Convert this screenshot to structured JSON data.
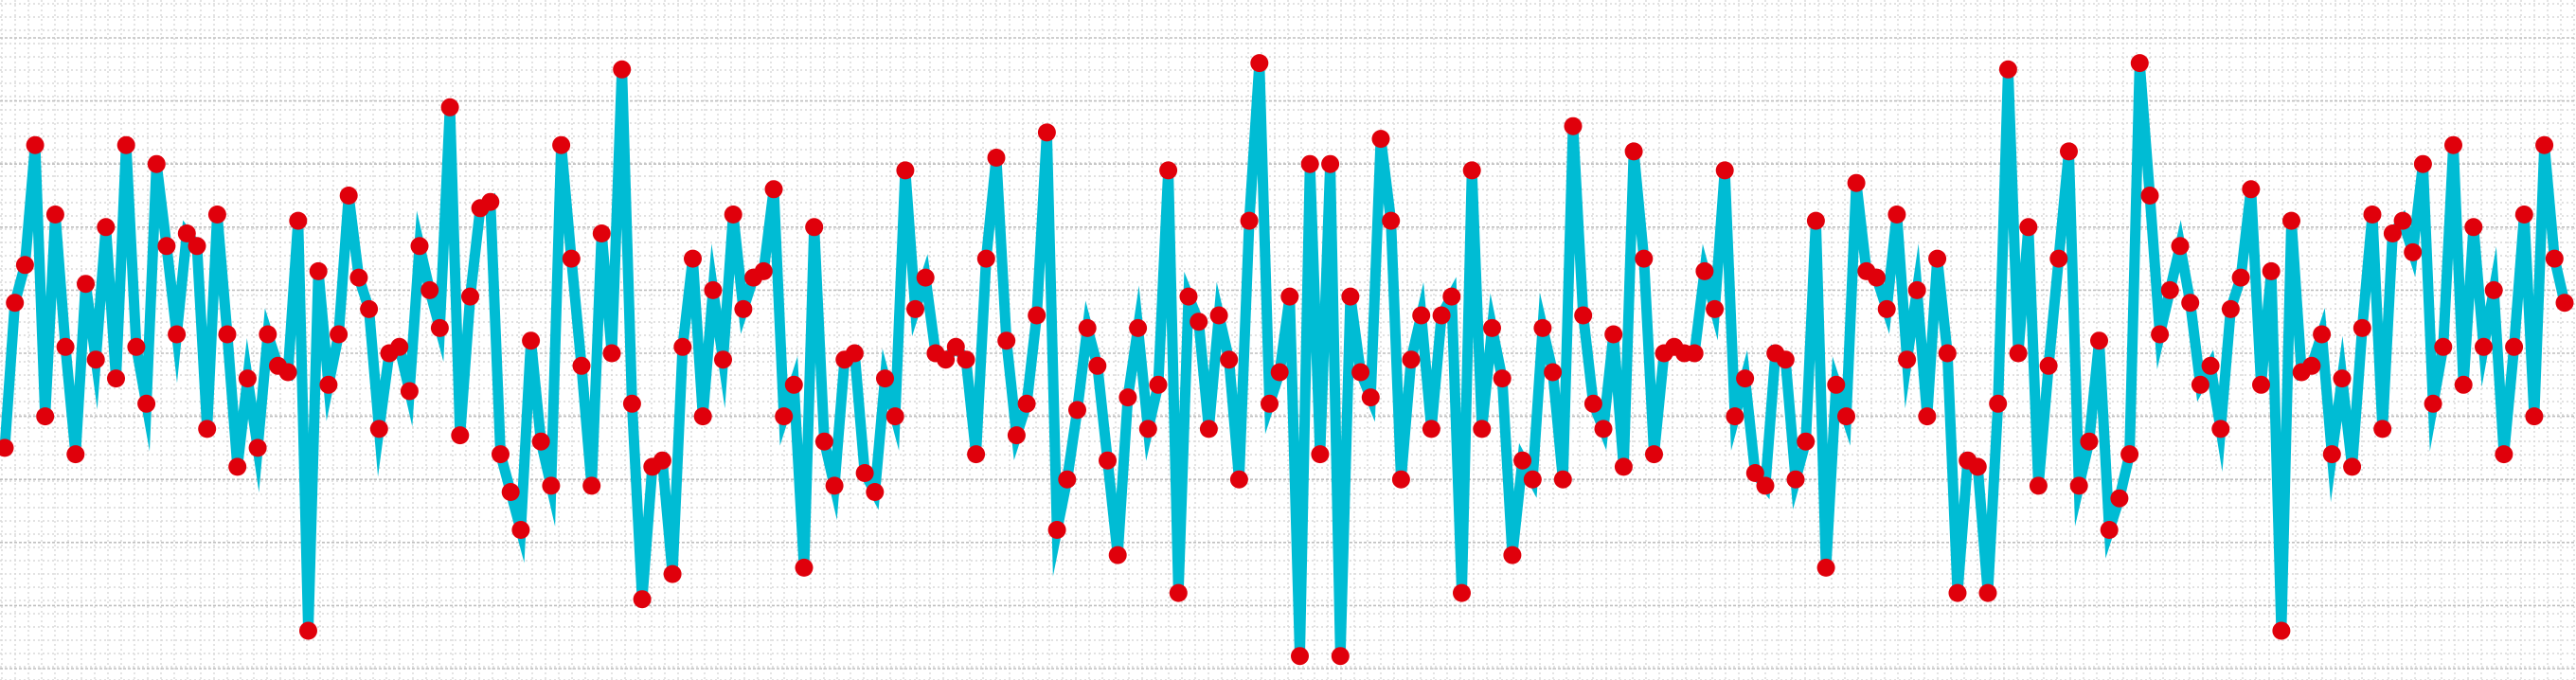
{
  "colors": {
    "background": "#ffffff",
    "line": "#00bcd4",
    "marker": "#e0000b",
    "grid_major": "#bfbfbf",
    "grid_minor": "#d9d9d9"
  },
  "chart_data": {
    "type": "line",
    "title": "",
    "xlabel": "",
    "ylabel": "",
    "grid": true,
    "grid_style": "dotted",
    "axes_visible": false,
    "ylim": [
      0,
      100
    ],
    "xlim": [
      0,
      253
    ],
    "series": [
      {
        "marker": "circle",
        "values": [
          35,
          58,
          64,
          83,
          40,
          72,
          51,
          34,
          61,
          49,
          70,
          46,
          83,
          51,
          42,
          80,
          67,
          53,
          69,
          67,
          38,
          72,
          53,
          32,
          46,
          35,
          53,
          48,
          47,
          71,
          6,
          63,
          45,
          53,
          75,
          62,
          57,
          38,
          50,
          51,
          44,
          67,
          60,
          54,
          89,
          37,
          59,
          73,
          74,
          34,
          28,
          22,
          52,
          36,
          29,
          83,
          65,
          48,
          29,
          69,
          50,
          95,
          42,
          11,
          32,
          33,
          15,
          51,
          65,
          40,
          60,
          49,
          72,
          57,
          62,
          63,
          76,
          40,
          45,
          16,
          70,
          36,
          29,
          49,
          50,
          31,
          28,
          46,
          40,
          79,
          57,
          62,
          50,
          49,
          51,
          49,
          34,
          65,
          81,
          52,
          37,
          42,
          56,
          85,
          22,
          30,
          41,
          54,
          48,
          33,
          18,
          43,
          54,
          38,
          45,
          79,
          12,
          59,
          55,
          38,
          56,
          49,
          30,
          71,
          96,
          42,
          47,
          59,
          2,
          80,
          34,
          80,
          2,
          59,
          47,
          43,
          84,
          71,
          30,
          49,
          56,
          38,
          56,
          59,
          12,
          79,
          38,
          54,
          46,
          18,
          33,
          30,
          54,
          47,
          30,
          86,
          56,
          42,
          38,
          53,
          32,
          82,
          65,
          34,
          50,
          51,
          50,
          50,
          63,
          57,
          79,
          40,
          46,
          31,
          29,
          50,
          49,
          30,
          36,
          71,
          16,
          45,
          40,
          77,
          63,
          62,
          57,
          72,
          49,
          60,
          40,
          65,
          50,
          12,
          33,
          32,
          12,
          42,
          95,
          50,
          70,
          29,
          48,
          65,
          82,
          29,
          36,
          52,
          22,
          27,
          34,
          96,
          75,
          53,
          60,
          67,
          58,
          45,
          48,
          38,
          57,
          62,
          76,
          45,
          63,
          6,
          71,
          47,
          48,
          53,
          34,
          46,
          32,
          54,
          72,
          38,
          69,
          71,
          66,
          80,
          42,
          51,
          83,
          45,
          70,
          51,
          60,
          34,
          51,
          72,
          40,
          83,
          65,
          58
        ]
      }
    ]
  }
}
